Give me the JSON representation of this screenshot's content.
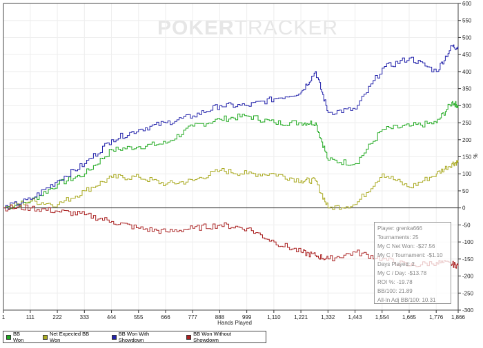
{
  "watermark": {
    "part1": "POKER",
    "part2": "TRACKER"
  },
  "chart_data": {
    "type": "line",
    "title": "",
    "xlabel": "Hands Played",
    "ylabel": "%",
    "xlim": [
      1,
      1866
    ],
    "ylim": [
      -300,
      600
    ],
    "grid": true,
    "x_ticks": [
      "1",
      "111",
      "222",
      "333",
      "444",
      "555",
      "666",
      "777",
      "888",
      "999",
      "1,110",
      "1,221",
      "1,332",
      "1,443",
      "1,554",
      "1,665",
      "1,776",
      "1,866"
    ],
    "y_ticks": [
      600,
      550,
      500,
      450,
      400,
      350,
      300,
      250,
      200,
      150,
      100,
      50,
      0,
      -50,
      -100,
      -150,
      -200,
      -250,
      -300
    ],
    "x": [
      1,
      111,
      222,
      333,
      444,
      555,
      666,
      777,
      888,
      999,
      1110,
      1221,
      1280,
      1332,
      1443,
      1554,
      1665,
      1776,
      1840,
      1866
    ],
    "series": [
      {
        "name": "BB Won",
        "color": "#22aa22",
        "values": [
          0,
          20,
          70,
          100,
          170,
          180,
          190,
          240,
          260,
          270,
          250,
          250,
          250,
          140,
          130,
          230,
          240,
          250,
          310,
          300
        ]
      },
      {
        "name": "Net Expected BB Won",
        "color": "#aaaa22",
        "values": [
          0,
          20,
          10,
          50,
          90,
          90,
          70,
          80,
          110,
          100,
          100,
          80,
          80,
          0,
          10,
          100,
          60,
          100,
          130,
          135
        ]
      },
      {
        "name": "BB Won With Showdown",
        "color": "#2222aa",
        "values": [
          0,
          25,
          80,
          130,
          200,
          230,
          250,
          270,
          300,
          300,
          320,
          340,
          400,
          280,
          290,
          410,
          440,
          400,
          475,
          470
        ]
      },
      {
        "name": "BB Won Without Showdown",
        "color": "#aa2222",
        "values": [
          0,
          0,
          -10,
          -20,
          -40,
          -60,
          -70,
          -60,
          -50,
          -60,
          -100,
          -130,
          -140,
          -150,
          -130,
          -150,
          -170,
          -160,
          -165,
          -170
        ]
      }
    ]
  },
  "stats": [
    "Player: grenka666",
    "Tournaments: 25",
    "My C Net Won: -$27.56",
    "My C / Tournament: -$1.10",
    "Days Played: 2",
    "My C / Day: -$13.78",
    "ROI %: -19.78",
    "BB/100: 21.89",
    "All-In Adj BB/100: 10.31"
  ]
}
